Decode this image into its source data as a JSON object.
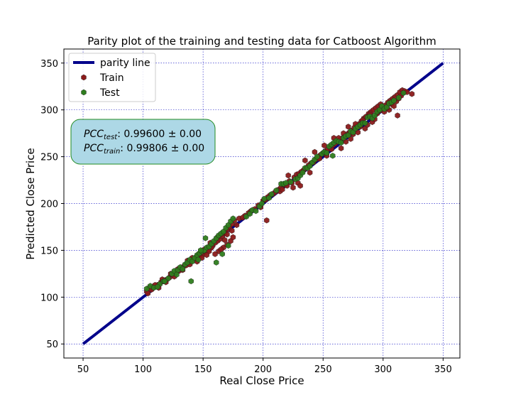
{
  "colors": {
    "parity_line": "#00008b",
    "train": "#8b1a1a",
    "test": "#2e7d1e",
    "grid": "#3333cc",
    "box_fill": "#add8e6",
    "box_edge": "#228b22"
  },
  "chart_data": {
    "type": "scatter",
    "title": "Parity plot of the training and testing data for Catboost Algorithm",
    "xlabel": "Real Close Price",
    "ylabel": "Predicted Close Price",
    "xlim": [
      34,
      364
    ],
    "ylim": [
      35,
      365
    ],
    "xticks": [
      50,
      100,
      150,
      200,
      250,
      300,
      350
    ],
    "yticks": [
      50,
      100,
      150,
      200,
      250,
      300,
      350
    ],
    "grid": true,
    "legend_position": "top-left",
    "legend": [
      "parity line",
      "Train",
      "Test"
    ],
    "annotation": {
      "test_label": "PCC",
      "test_sub": "test",
      "test_value": ": 0.99600 ± 0.00",
      "train_label": "PCC",
      "train_sub": "train",
      "train_value": ": 0.99806 ± 0.00"
    },
    "parity_line": {
      "x": [
        50,
        350
      ],
      "y": [
        50,
        350
      ]
    },
    "series": [
      {
        "name": "Train",
        "points": [
          [
            103,
            106
          ],
          [
            105,
            110
          ],
          [
            108,
            111
          ],
          [
            112,
            113
          ],
          [
            115,
            116
          ],
          [
            118,
            118
          ],
          [
            120,
            119
          ],
          [
            122,
            121
          ],
          [
            125,
            124
          ],
          [
            127,
            126
          ],
          [
            130,
            128
          ],
          [
            132,
            131
          ],
          [
            134,
            133
          ],
          [
            136,
            134
          ],
          [
            138,
            137
          ],
          [
            140,
            139
          ],
          [
            142,
            140
          ],
          [
            144,
            141
          ],
          [
            146,
            143
          ],
          [
            148,
            144
          ],
          [
            150,
            146
          ],
          [
            152,
            148
          ],
          [
            154,
            150
          ],
          [
            156,
            152
          ],
          [
            158,
            155
          ],
          [
            160,
            158
          ],
          [
            162,
            160
          ],
          [
            164,
            162
          ],
          [
            166,
            165
          ],
          [
            168,
            168
          ],
          [
            170,
            172
          ],
          [
            172,
            175
          ],
          [
            174,
            178
          ],
          [
            176,
            182
          ],
          [
            163,
            149
          ],
          [
            167,
            153
          ],
          [
            170,
            156
          ],
          [
            173,
            160
          ],
          [
            175,
            164
          ],
          [
            160,
            146
          ],
          [
            157,
            153
          ],
          [
            155,
            149
          ],
          [
            153,
            145
          ],
          [
            149,
            142
          ],
          [
            147,
            146
          ],
          [
            145,
            138
          ],
          [
            141,
            142
          ],
          [
            139,
            135
          ],
          [
            137,
            139
          ],
          [
            133,
            129
          ],
          [
            129,
            130
          ],
          [
            126,
            122
          ],
          [
            123,
            125
          ],
          [
            119,
            116
          ],
          [
            116,
            119
          ],
          [
            113,
            110
          ],
          [
            110,
            113
          ],
          [
            107,
            108
          ],
          [
            104,
            104
          ],
          [
            128,
            127
          ],
          [
            185,
            187
          ],
          [
            188,
            190
          ],
          [
            190,
            192
          ],
          [
            193,
            194
          ],
          [
            196,
            198
          ],
          [
            198,
            196
          ],
          [
            200,
            203
          ],
          [
            202,
            204
          ],
          [
            204,
            207
          ],
          [
            206,
            209
          ],
          [
            208,
            210
          ],
          [
            210,
            212
          ],
          [
            213,
            215
          ],
          [
            215,
            217
          ],
          [
            218,
            220
          ],
          [
            220,
            219
          ],
          [
            222,
            224
          ],
          [
            224,
            222
          ],
          [
            226,
            228
          ],
          [
            228,
            231
          ],
          [
            230,
            232
          ],
          [
            232,
            234
          ],
          [
            234,
            236
          ],
          [
            236,
            238
          ],
          [
            238,
            241
          ],
          [
            240,
            243
          ],
          [
            242,
            244
          ],
          [
            244,
            247
          ],
          [
            246,
            250
          ],
          [
            248,
            252
          ],
          [
            250,
            254
          ],
          [
            252,
            256
          ],
          [
            254,
            258
          ],
          [
            256,
            260
          ],
          [
            258,
            262
          ],
          [
            260,
            264
          ],
          [
            262,
            266
          ],
          [
            264,
            268
          ],
          [
            266,
            270
          ],
          [
            268,
            272
          ],
          [
            270,
            274
          ],
          [
            272,
            276
          ],
          [
            274,
            278
          ],
          [
            276,
            281
          ],
          [
            278,
            283
          ],
          [
            280,
            285
          ],
          [
            282,
            288
          ],
          [
            284,
            291
          ],
          [
            286,
            293
          ],
          [
            288,
            296
          ],
          [
            290,
            298
          ],
          [
            292,
            300
          ],
          [
            294,
            302
          ],
          [
            296,
            304
          ],
          [
            298,
            306
          ],
          [
            300,
            303
          ],
          [
            302,
            305
          ],
          [
            304,
            308
          ],
          [
            306,
            310
          ],
          [
            308,
            312
          ],
          [
            310,
            314
          ],
          [
            312,
            316
          ],
          [
            314,
            319
          ],
          [
            316,
            321
          ],
          [
            318,
            320
          ],
          [
            320,
            319
          ],
          [
            324,
            317
          ],
          [
            305,
            300
          ],
          [
            312,
            294
          ],
          [
            203,
            182
          ],
          [
            214,
            213
          ],
          [
            216,
            215
          ],
          [
            221,
            230
          ],
          [
            225,
            217
          ],
          [
            229,
            222
          ],
          [
            231,
            219
          ],
          [
            235,
            246
          ],
          [
            239,
            233
          ],
          [
            243,
            255
          ],
          [
            247,
            248
          ],
          [
            251,
            262
          ],
          [
            253,
            251
          ],
          [
            257,
            258
          ],
          [
            259,
            270
          ],
          [
            263,
            270
          ],
          [
            265,
            259
          ],
          [
            267,
            275
          ],
          [
            269,
            266
          ],
          [
            271,
            282
          ],
          [
            273,
            269
          ],
          [
            275,
            274
          ],
          [
            277,
            285
          ],
          [
            279,
            276
          ],
          [
            281,
            282
          ],
          [
            283,
            289
          ],
          [
            285,
            280
          ],
          [
            287,
            284
          ],
          [
            289,
            295
          ],
          [
            291,
            287
          ],
          [
            293,
            290
          ],
          [
            295,
            296
          ],
          [
            297,
            299
          ],
          [
            299,
            301
          ],
          [
            301,
            298
          ],
          [
            303,
            302
          ],
          [
            307,
            306
          ],
          [
            309,
            304
          ],
          [
            311,
            309
          ],
          [
            313,
            312
          ],
          [
            315,
            315
          ],
          [
            165,
            151
          ],
          [
            170,
            167
          ],
          [
            174,
            171
          ],
          [
            178,
            177
          ],
          [
            180,
            184
          ],
          [
            183,
            185
          ],
          [
            162,
            164
          ],
          [
            168,
            161
          ],
          [
            156,
            158
          ],
          [
            151,
            151
          ]
        ]
      },
      {
        "name": "Test",
        "points": [
          [
            103,
            109
          ],
          [
            106,
            112
          ],
          [
            109,
            110
          ],
          [
            114,
            114
          ],
          [
            117,
            117
          ],
          [
            121,
            120
          ],
          [
            124,
            125
          ],
          [
            126,
            128
          ],
          [
            129,
            129
          ],
          [
            131,
            132
          ],
          [
            135,
            135
          ],
          [
            137,
            137
          ],
          [
            139,
            140
          ],
          [
            141,
            138
          ],
          [
            143,
            142
          ],
          [
            145,
            145
          ],
          [
            147,
            147
          ],
          [
            149,
            149
          ],
          [
            151,
            150
          ],
          [
            153,
            153
          ],
          [
            155,
            154
          ],
          [
            157,
            157
          ],
          [
            159,
            160
          ],
          [
            161,
            163
          ],
          [
            163,
            166
          ],
          [
            165,
            168
          ],
          [
            167,
            170
          ],
          [
            169,
            174
          ],
          [
            171,
            177
          ],
          [
            173,
            181
          ],
          [
            175,
            184
          ],
          [
            166,
            146
          ],
          [
            171,
            155
          ],
          [
            161,
            137
          ],
          [
            152,
            163
          ],
          [
            148,
            150
          ],
          [
            146,
            140
          ],
          [
            140,
            117
          ],
          [
            133,
            130
          ],
          [
            128,
            124
          ],
          [
            118,
            117
          ],
          [
            112,
            111
          ],
          [
            186,
            186
          ],
          [
            189,
            189
          ],
          [
            191,
            193
          ],
          [
            194,
            192
          ],
          [
            197,
            197
          ],
          [
            199,
            200
          ],
          [
            201,
            205
          ],
          [
            205,
            206
          ],
          [
            207,
            210
          ],
          [
            211,
            214
          ],
          [
            215,
            221
          ],
          [
            217,
            221
          ],
          [
            219,
            222
          ],
          [
            223,
            223
          ],
          [
            227,
            226
          ],
          [
            229,
            227
          ],
          [
            231,
            230
          ],
          [
            233,
            233
          ],
          [
            235,
            238
          ],
          [
            237,
            238
          ],
          [
            239,
            240
          ],
          [
            241,
            244
          ],
          [
            243,
            247
          ],
          [
            245,
            250
          ],
          [
            249,
            253
          ],
          [
            251,
            255
          ],
          [
            253,
            254
          ],
          [
            255,
            261
          ],
          [
            257,
            263
          ],
          [
            259,
            265
          ],
          [
            261,
            267
          ],
          [
            263,
            266
          ],
          [
            265,
            265
          ],
          [
            267,
            270
          ],
          [
            269,
            272
          ],
          [
            271,
            273
          ],
          [
            273,
            277
          ],
          [
            275,
            276
          ],
          [
            277,
            280
          ],
          [
            279,
            282
          ],
          [
            281,
            284
          ],
          [
            283,
            286
          ],
          [
            285,
            286
          ],
          [
            287,
            292
          ],
          [
            289,
            293
          ],
          [
            291,
            291
          ],
          [
            293,
            294
          ],
          [
            295,
            298
          ],
          [
            297,
            300
          ],
          [
            299,
            304
          ],
          [
            301,
            301
          ],
          [
            303,
            303
          ],
          [
            305,
            307
          ],
          [
            307,
            308
          ],
          [
            309,
            310
          ],
          [
            313,
            313
          ],
          [
            317,
            318
          ],
          [
            258,
            251
          ]
        ]
      }
    ]
  }
}
